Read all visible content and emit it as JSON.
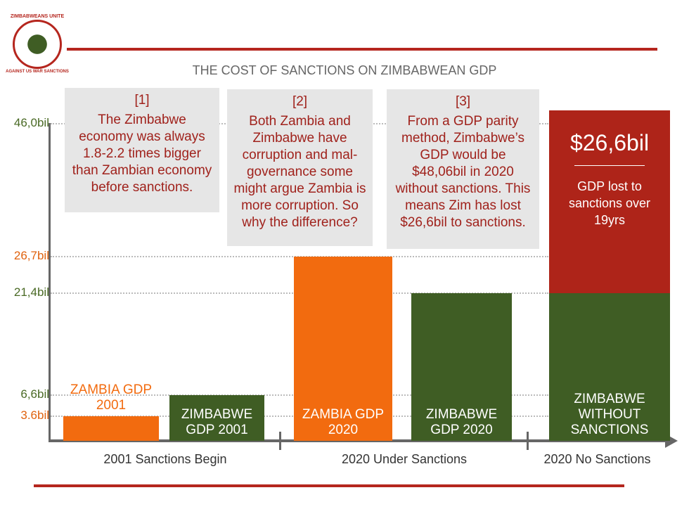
{
  "chart_data": {
    "type": "bar",
    "title": "THE COST OF SANCTIONS ON ZIMBABWEAN GDP",
    "logo": {
      "top": "ZIMBABWEANS UNITE",
      "bottom": "AGAINST US WAR SANCTIONS"
    },
    "categories": [
      "ZAMBIA GDP 2001",
      "ZIMBABWE GDP 2001",
      "ZAMBIA GDP 2020",
      "ZIMBABWE GDP 2020",
      "ZIMBABWE WITHOUT SANCTIONS"
    ],
    "values": [
      3.6,
      6.6,
      26.7,
      21.4,
      21.4
    ],
    "colors": [
      "#f26b0f",
      "#3f5d24",
      "#f26b0f",
      "#3f5d24",
      "#3f5d24"
    ],
    "stack": {
      "values": [
        null,
        null,
        null,
        null,
        26.6
      ],
      "value_labels": [
        null,
        null,
        null,
        null,
        "$26,6bil"
      ],
      "color": "#ae2419",
      "note": "GDP lost to sanctions over 19yrs"
    },
    "groups": [
      "2001 Sanctions Begin",
      "2020 Under Sanctions",
      "2020 No Sanctions"
    ],
    "annotations": [
      {
        "number": "[1]",
        "text": "The Zimbabwe economy was always 1.8-2.2 times bigger than Zambian economy before sanctions."
      },
      {
        "number": "[2]",
        "text": "Both Zambia and Zimbabwe have corruption and mal-governance some might argue Zambia is more corruption. So why the difference?"
      },
      {
        "number": "[3]",
        "text": "From a GDP parity method, Zimbabwe’s GDP would be $48,06bil in 2020 without sanctions. This means Zim has lost $26,6bil to sanctions."
      }
    ],
    "ylim": [
      0,
      50
    ],
    "yticks": [
      {
        "value": 3.6,
        "label": "3.6bil"
      },
      {
        "value": 6.6,
        "label": "6,6bil"
      },
      {
        "value": 21.4,
        "label": "21,4bil"
      },
      {
        "value": 26.7,
        "label": "26,7bil"
      },
      {
        "value": 46.0,
        "label": "46,0bil"
      }
    ],
    "ytick_colors": [
      "#e0620e",
      "#4a6a25",
      "#4a6a25",
      "#e0620e",
      "#4a6a25"
    ],
    "grid": true
  }
}
